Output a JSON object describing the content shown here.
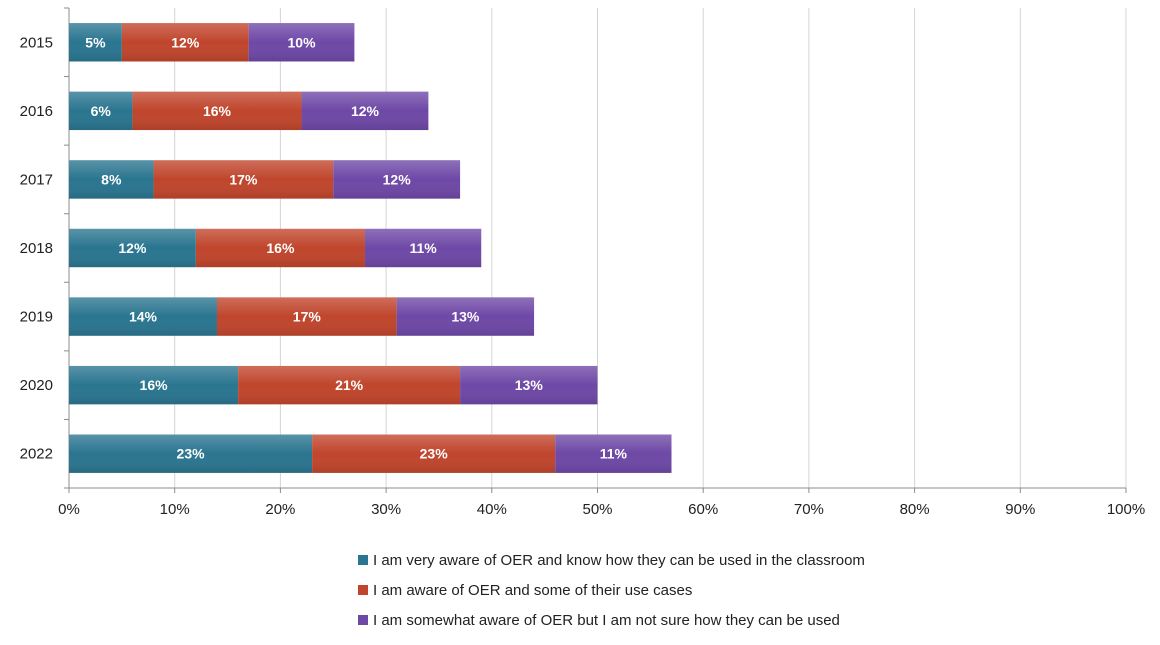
{
  "chart_data": {
    "type": "bar",
    "orientation": "horizontal",
    "stacked": true,
    "categories": [
      "2015",
      "2016",
      "2017",
      "2018",
      "2019",
      "2020",
      "2022"
    ],
    "series": [
      {
        "name": "I am very aware of OER and know how they can be used in the classroom",
        "values": [
          5,
          6,
          8,
          12,
          14,
          16,
          23
        ],
        "color": "#2A7590"
      },
      {
        "name": "I am aware of OER and some of their use cases",
        "values": [
          12,
          16,
          17,
          16,
          17,
          21,
          23
        ],
        "color": "#C0452C"
      },
      {
        "name": "I am somewhat aware of OER but I am not sure how they can be used",
        "values": [
          10,
          12,
          12,
          11,
          13,
          13,
          11
        ],
        "color": "#6E48A6"
      }
    ],
    "value_suffix": "%",
    "x_ticks": [
      "0%",
      "10%",
      "20%",
      "30%",
      "40%",
      "50%",
      "60%",
      "70%",
      "80%",
      "90%",
      "100%"
    ],
    "xlim": [
      0,
      100
    ],
    "grid": true,
    "legend_position": "bottom",
    "title": "",
    "xlabel": "",
    "ylabel": ""
  }
}
